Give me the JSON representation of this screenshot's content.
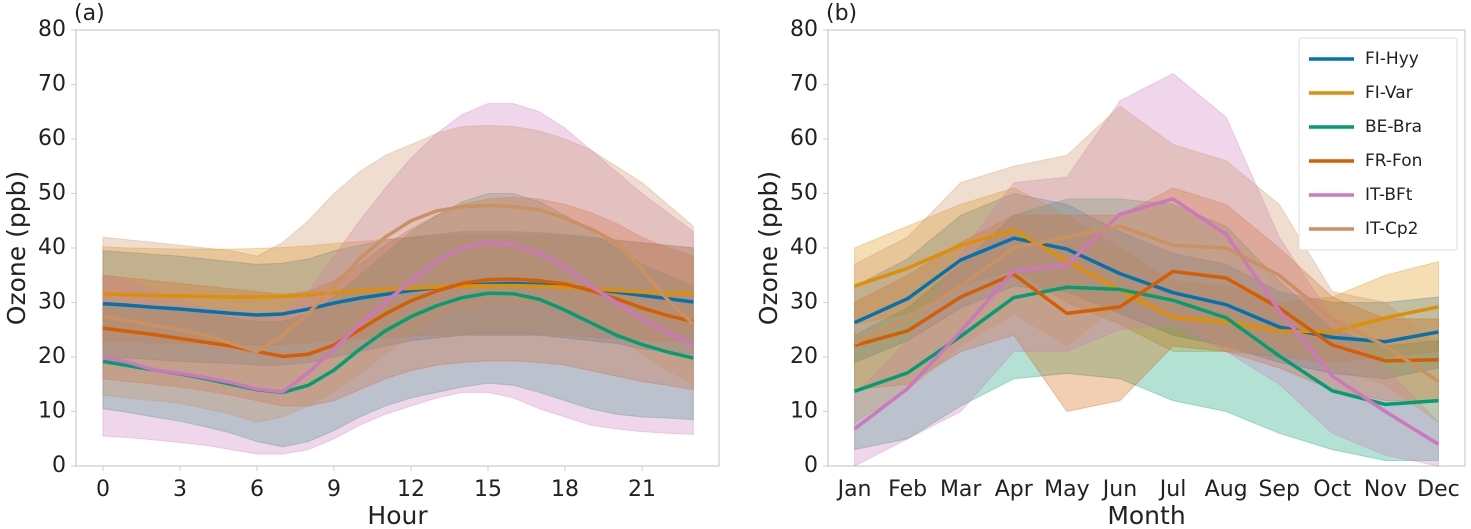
{
  "chart_data": [
    {
      "type": "line",
      "panel_label": "(a)",
      "xlabel": "Hour",
      "ylabel": "Ozone (ppb)",
      "x": [
        0,
        1,
        2,
        3,
        4,
        5,
        6,
        7,
        8,
        9,
        10,
        11,
        12,
        13,
        14,
        15,
        16,
        17,
        18,
        19,
        20,
        21,
        22,
        23
      ],
      "xlim": [
        -1.05,
        24
      ],
      "xticks": [
        0,
        3,
        6,
        9,
        12,
        15,
        18,
        21
      ],
      "ylim": [
        0,
        80
      ],
      "yticks": [
        0,
        10,
        20,
        30,
        40,
        50,
        60,
        70,
        80
      ],
      "series": [
        {
          "name": "FI-Hyy",
          "color": "#0173b2",
          "values": [
            29.8,
            29.5,
            29.1,
            28.8,
            28.4,
            28.0,
            27.7,
            27.9,
            28.8,
            29.9,
            30.8,
            31.5,
            32.2,
            32.7,
            33.1,
            33.4,
            33.5,
            33.3,
            33.0,
            32.5,
            31.9,
            31.3,
            30.7,
            30.1
          ],
          "lower": [
            20,
            19.8,
            19.5,
            19.2,
            19,
            18.8,
            18.5,
            18.5,
            19,
            20,
            21,
            22,
            23,
            23.5,
            24,
            24,
            24,
            24,
            23.5,
            23,
            22.5,
            21.5,
            21,
            20.5
          ],
          "upper": [
            39.5,
            39.2,
            38.8,
            38.5,
            38,
            37.5,
            37,
            37.2,
            38,
            39.5,
            40.5,
            41.5,
            42,
            42.5,
            43,
            43,
            43,
            42.8,
            42.5,
            42,
            41.5,
            41,
            40.5,
            40
          ]
        },
        {
          "name": "FI-Var",
          "color": "#de8f05",
          "values": [
            31.6,
            31.4,
            31.3,
            31.2,
            31.1,
            31.0,
            31.0,
            31.1,
            31.4,
            31.8,
            32.1,
            32.4,
            32.6,
            32.8,
            33.0,
            33.1,
            33.1,
            33.0,
            32.8,
            32.5,
            32.2,
            31.9,
            31.7,
            31.6
          ],
          "lower": [
            23,
            22.8,
            22.6,
            22.5,
            22.4,
            22.3,
            22.2,
            22.3,
            22.6,
            23,
            23.3,
            23.6,
            23.8,
            24,
            24.2,
            24.3,
            24.3,
            24.2,
            24,
            23.7,
            23.4,
            23.1,
            22.9,
            22.8
          ],
          "upper": [
            40.2,
            40.0,
            39.9,
            39.8,
            39.8,
            39.8,
            39.9,
            40.1,
            40.4,
            40.8,
            41.2,
            41.6,
            41.9,
            42.2,
            42.4,
            42.5,
            42.5,
            42.4,
            42.2,
            41.8,
            41.3,
            40.8,
            40.4,
            40.1
          ]
        },
        {
          "name": "BE-Bra",
          "color": "#029e73",
          "values": [
            19.2,
            18.4,
            17.6,
            16.9,
            16.0,
            15.0,
            14.0,
            13.5,
            14.8,
            17.6,
            21.4,
            24.8,
            27.4,
            29.4,
            30.9,
            31.7,
            31.6,
            30.6,
            28.6,
            26.3,
            24.0,
            22.3,
            20.9,
            19.8
          ],
          "lower": [
            10.5,
            9.8,
            9.0,
            8.2,
            7.2,
            6.0,
            4.5,
            3.5,
            4.5,
            6.5,
            9.0,
            11.0,
            12.5,
            13.5,
            14.5,
            15.2,
            14.8,
            13.5,
            12.0,
            10.5,
            9.5,
            9.0,
            8.8,
            8.5
          ],
          "upper": [
            30,
            29.5,
            29,
            28.5,
            28,
            27.2,
            26.5,
            26.5,
            28,
            31,
            35,
            39,
            43,
            46,
            48.5,
            50,
            50,
            48.5,
            46,
            43,
            40,
            37,
            35,
            33
          ]
        },
        {
          "name": "FR-Fon",
          "color": "#d55e00",
          "values": [
            25.3,
            24.7,
            24.1,
            23.4,
            22.7,
            22.0,
            21.0,
            20.1,
            20.5,
            22.2,
            25.0,
            27.9,
            30.3,
            32.1,
            33.5,
            34.2,
            34.3,
            34.0,
            33.4,
            32.2,
            30.7,
            29.0,
            27.6,
            26.5
          ],
          "lower": [
            16,
            15.5,
            15,
            14.5,
            13.8,
            13,
            12,
            11,
            11,
            12,
            14,
            16,
            17.5,
            18.5,
            19,
            19.3,
            19.3,
            19,
            18.5,
            17.5,
            16.5,
            15.5,
            14.8,
            14
          ],
          "upper": [
            35,
            34.5,
            34,
            33.5,
            33,
            32.5,
            32,
            31.5,
            32,
            34,
            37,
            40.5,
            43.5,
            46,
            48,
            49,
            49.3,
            49,
            48,
            46.5,
            44.5,
            42,
            40,
            38.5
          ]
        },
        {
          "name": "IT-BFt",
          "color": "#cc78bc",
          "values": [
            20,
            19,
            17.6,
            17,
            16.2,
            15.3,
            14.1,
            13.6,
            17.1,
            21.5,
            26,
            30,
            34,
            37.5,
            40,
            41,
            40.6,
            39,
            36.5,
            33,
            30,
            27,
            24.5,
            22.3
          ],
          "lower": [
            5.5,
            5.2,
            4.8,
            4.3,
            3.8,
            3,
            2.2,
            2.2,
            3,
            5,
            7.5,
            9.5,
            11,
            12.5,
            13.5,
            13.5,
            12.5,
            10.5,
            9,
            7.5,
            6.8,
            6.3,
            6,
            5.8
          ],
          "upper": [
            35,
            34,
            32,
            30.5,
            29,
            28.5,
            28,
            28,
            32,
            38.5,
            45,
            51,
            56.5,
            61,
            64.5,
            66.5,
            66.5,
            65,
            62,
            58,
            54,
            50,
            46.5,
            43
          ]
        },
        {
          "name": "IT-Cp2",
          "color": "#ca9161",
          "values": [
            27.5,
            26.7,
            25.8,
            25,
            24,
            22.5,
            21,
            24,
            28,
            33,
            38,
            42,
            45,
            46.8,
            47.6,
            47.8,
            47.6,
            47,
            45.5,
            43.5,
            41,
            36,
            30.5,
            26
          ],
          "lower": [
            13,
            12.5,
            12,
            11.5,
            10.5,
            9.5,
            8,
            9,
            11,
            13.5,
            17,
            20.5,
            24,
            27,
            29,
            30,
            30,
            29.5,
            28.5,
            26.5,
            24,
            20.5,
            17.5,
            15
          ],
          "upper": [
            42,
            41.5,
            41,
            40.5,
            40,
            39.5,
            38.5,
            41,
            45,
            50,
            54,
            57,
            59,
            61,
            62.3,
            62.5,
            62.3,
            61.5,
            60,
            58,
            55,
            52,
            48,
            44
          ]
        }
      ]
    },
    {
      "type": "line",
      "panel_label": "(b)",
      "xlabel": "Month",
      "ylabel": "Ozone (ppb)",
      "categories": [
        "Jan",
        "Feb",
        "Mar",
        "Apr",
        "May",
        "Jun",
        "Jul",
        "Aug",
        "Sep",
        "Oct",
        "Nov",
        "Dec"
      ],
      "ylim": [
        0,
        80
      ],
      "yticks": [
        0,
        10,
        20,
        30,
        40,
        50,
        60,
        70,
        80
      ],
      "legend": "upper right",
      "series": [
        {
          "name": "FI-Hyy",
          "color": "#0173b2",
          "values": [
            26.3,
            30.7,
            37.8,
            41.8,
            39.8,
            35.3,
            31.8,
            29.6,
            25.5,
            23.6,
            22.8,
            24.6
          ],
          "lower": [
            19,
            23,
            29,
            33,
            32,
            28,
            24,
            22,
            19,
            17,
            16,
            18
          ],
          "upper": [
            33,
            38,
            46,
            50,
            48,
            43,
            39,
            37,
            32,
            30,
            30,
            31
          ]
        },
        {
          "name": "FI-Var",
          "color": "#de8f05",
          "values": [
            33,
            36.3,
            40.5,
            43.3,
            37.6,
            32.3,
            27.2,
            26.5,
            24.8,
            24.6,
            27.2,
            29.2
          ],
          "lower": [
            26,
            28,
            33,
            36,
            30,
            26,
            21,
            21,
            20,
            19,
            20,
            21
          ],
          "upper": [
            40,
            44,
            48,
            51,
            46,
            40,
            34,
            33,
            30,
            31,
            35,
            37.5
          ]
        },
        {
          "name": "BE-Bra",
          "color": "#029e73",
          "values": [
            13.7,
            17.1,
            23.8,
            30.9,
            32.8,
            32.4,
            30.4,
            27.2,
            20.2,
            13.8,
            11.3,
            12
          ],
          "lower": [
            3,
            5,
            11,
            16,
            17,
            16,
            12,
            10,
            6,
            3,
            1,
            1
          ],
          "upper": [
            24,
            29,
            37,
            46,
            49,
            49,
            48,
            44,
            34,
            25,
            22,
            23
          ]
        },
        {
          "name": "FR-Fon",
          "color": "#d55e00",
          "values": [
            22.1,
            24.8,
            31.0,
            35.2,
            28.0,
            29.2,
            35.7,
            34.5,
            29.0,
            22.2,
            19.3,
            19.5
          ],
          "lower": [
            14,
            15,
            21,
            24,
            10,
            12,
            22,
            21,
            18,
            14,
            12,
            12
          ],
          "upper": [
            30,
            35,
            41,
            46,
            46,
            46,
            51,
            48,
            40,
            31,
            27,
            27
          ]
        },
        {
          "name": "IT-BFt",
          "color": "#cc78bc",
          "values": [
            6.8,
            14.2,
            24.7,
            35.8,
            36.9,
            46.2,
            49,
            42.5,
            28.5,
            16.5,
            10,
            4
          ],
          "lower": [
            0,
            5,
            10,
            21,
            21,
            25,
            26,
            21,
            15,
            6,
            2,
            0
          ],
          "upper": [
            13,
            23,
            39,
            52,
            53,
            67,
            72,
            64,
            42,
            27,
            18,
            8
          ]
        },
        {
          "name": "IT-Cp2",
          "color": "#ca9161",
          "values": [
            22.5,
            27,
            33,
            40,
            42,
            44,
            40.5,
            40,
            35,
            27,
            22,
            15.5
          ],
          "lower": [
            8,
            14,
            22,
            28,
            22,
            30,
            28,
            21,
            22,
            18,
            15,
            8
          ],
          "upper": [
            37,
            42,
            52,
            55,
            57,
            66,
            59,
            56,
            48,
            32,
            30,
            22
          ]
        }
      ]
    }
  ]
}
